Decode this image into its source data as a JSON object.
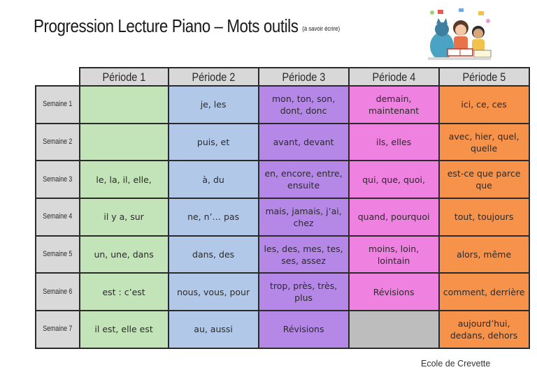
{
  "title": {
    "main": "Progression Lecture Piano – Mots outils",
    "note": "(à savoir écrire)"
  },
  "illustration": {
    "icon": "children-reading-illustration"
  },
  "periods": [
    "Période 1",
    "Période 2",
    "Période 3",
    "Période 4",
    "Période 5"
  ],
  "rows": [
    {
      "week": "Semaine 1",
      "cells": [
        "",
        "je, les",
        "mon, ton, son, dont, donc",
        "demain, maintenant",
        "ici, ce, ces"
      ]
    },
    {
      "week": "Semaine 2",
      "cells": [
        "",
        "puis, et",
        "avant, devant",
        "ils, elles",
        "avec, hier, quel, quelle"
      ]
    },
    {
      "week": "Semaine 3",
      "cells": [
        "le, la, il, elle,",
        "à, du",
        "en, encore, entre, ensuite",
        "qui, que, quoi,",
        "est-ce que parce que"
      ]
    },
    {
      "week": "Semaine 4",
      "cells": [
        "il y a, sur",
        "ne, n’… pas",
        "mais, jamais, j’ai, chez",
        "quand, pourquoi",
        "tout, toujours"
      ]
    },
    {
      "week": "Semaine 5",
      "cells": [
        "un, une, dans",
        "dans, des",
        "les, des, mes, tes, ses, assez",
        "moins, loin, lointain",
        "alors, même"
      ]
    },
    {
      "week": "Semaine 6",
      "cells": [
        "est : c’est",
        "nous, vous, pour",
        "trop, près, très, plus",
        "Révisions",
        "comment, derrière"
      ]
    },
    {
      "week": "Semaine 7",
      "cells": [
        "il est, elle est",
        "au, aussi",
        "Révisions",
        "",
        "aujourd’hui, dedans, dehors"
      ]
    }
  ],
  "colors": {
    "periode_1": "#c3e4b8",
    "periode_2": "#b2c8e8",
    "periode_3": "#b588e8",
    "periode_4": "#ef82e0",
    "periode_5": "#f7924a",
    "empty": "#bdbdbd",
    "header": "#d8d8d8"
  },
  "footer": "Ecole de Crevette"
}
